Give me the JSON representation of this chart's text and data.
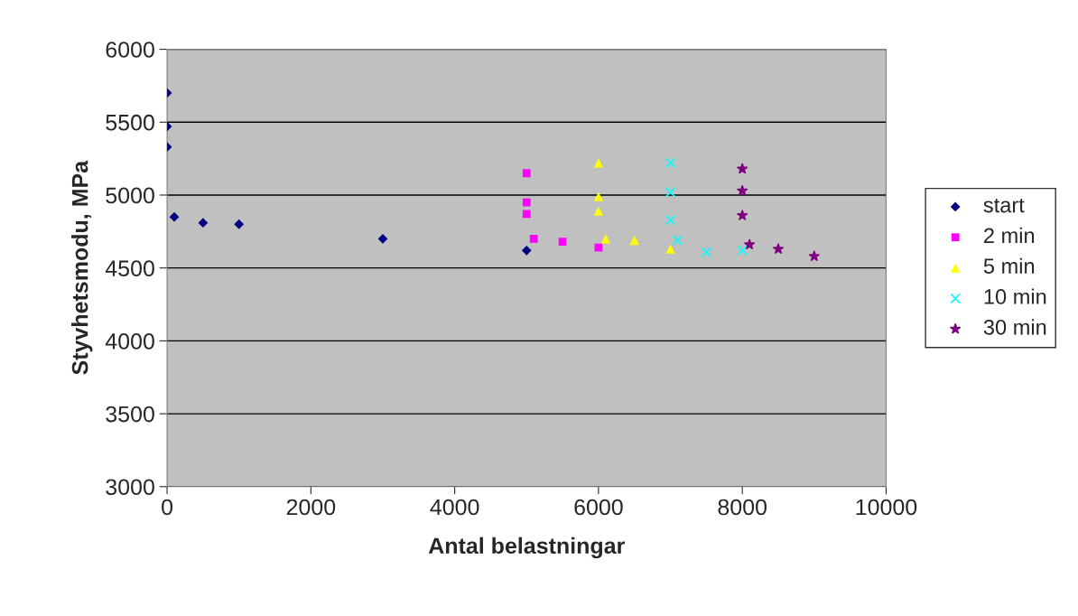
{
  "chart_data": {
    "type": "scatter",
    "xlabel": "Antal belastningar",
    "ylabel": "Styvhetsmodu, MPa",
    "xlim": [
      0,
      10000
    ],
    "xticks": [
      0,
      2000,
      4000,
      6000,
      8000,
      10000
    ],
    "ylim": [
      3000,
      6000
    ],
    "yticks": [
      3000,
      3500,
      4000,
      4500,
      5000,
      5500,
      6000
    ],
    "grid": "y",
    "legend": "right",
    "series": [
      {
        "name": "start",
        "color": "#000080",
        "marker": "diamond",
        "x": [
          0,
          0,
          0,
          100,
          500,
          1000,
          3000,
          5000
        ],
        "values": [
          5700,
          5470,
          5330,
          4850,
          4810,
          4800,
          4700,
          4620
        ]
      },
      {
        "name": "2 min",
        "color": "#ff00ff",
        "marker": "square",
        "x": [
          5000,
          5000,
          5000,
          5100,
          5500,
          6000
        ],
        "values": [
          5150,
          4950,
          4870,
          4700,
          4680,
          4640
        ]
      },
      {
        "name": "5 min",
        "color": "#ffff00",
        "marker": "triangle",
        "x": [
          6000,
          6000,
          6000,
          6100,
          6500,
          7000
        ],
        "values": [
          5220,
          4990,
          4890,
          4700,
          4690,
          4630
        ]
      },
      {
        "name": "10 min",
        "color": "#00ffff",
        "marker": "cross",
        "x": [
          7000,
          7000,
          7000,
          7100,
          7500,
          8000
        ],
        "values": [
          5220,
          5020,
          4830,
          4690,
          4610,
          4620
        ]
      },
      {
        "name": "30 min",
        "color": "#800080",
        "marker": "star",
        "x": [
          8000,
          8000,
          8000,
          8100,
          8500,
          9000
        ],
        "values": [
          5180,
          5030,
          4860,
          4660,
          4630,
          4580
        ]
      }
    ]
  }
}
